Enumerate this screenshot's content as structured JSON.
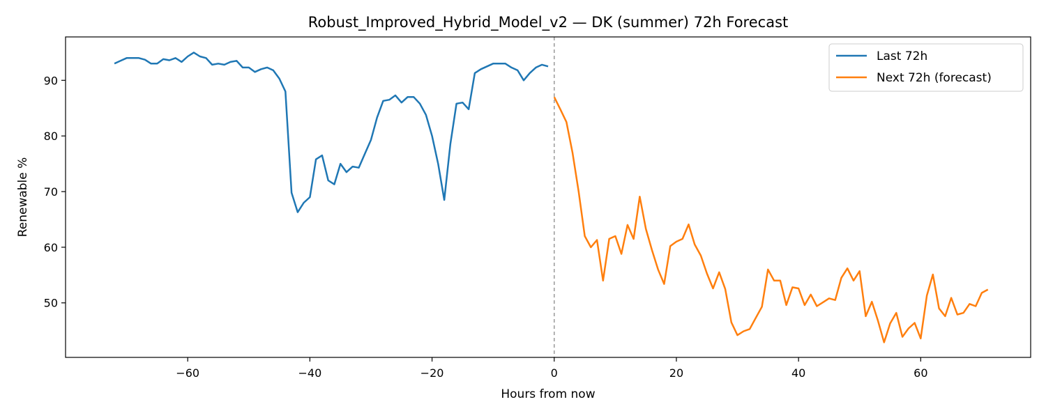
{
  "chart_data": {
    "type": "line",
    "title": "Robust_Improved_Hybrid_Model_v2 — DK (summer) 72h Forecast",
    "xlabel": "Hours from now",
    "ylabel": "Renewable %",
    "xlim": [
      -80,
      78
    ],
    "ylim": [
      40.2,
      97.8
    ],
    "x_ticks": [
      -60,
      -40,
      -20,
      0,
      20,
      40,
      60
    ],
    "x_tick_labels": [
      "−60",
      "−40",
      "−20",
      "0",
      "20",
      "40",
      "60"
    ],
    "y_ticks": [
      50,
      60,
      70,
      80,
      90
    ],
    "y_tick_labels": [
      "50",
      "60",
      "70",
      "80",
      "90"
    ],
    "grid": false,
    "legend_position": "top-right",
    "vline": {
      "x": 0,
      "style": "dashed",
      "color": "#999999"
    },
    "series": [
      {
        "name": "Last 72h",
        "color": "#1f77b4",
        "x": [
          -72,
          -71,
          -70,
          -69,
          -68,
          -67,
          -66,
          -65,
          -64,
          -63,
          -62,
          -61,
          -60,
          -59,
          -58,
          -57,
          -56,
          -55,
          -54,
          -53,
          -52,
          -51,
          -50,
          -49,
          -48,
          -47,
          -46,
          -45,
          -44,
          -43,
          -42,
          -41,
          -40,
          -39,
          -38,
          -37,
          -36,
          -35,
          -34,
          -33,
          -32,
          -31,
          -30,
          -29,
          -28,
          -27,
          -26,
          -25,
          -24,
          -23,
          -22,
          -21,
          -20,
          -19,
          -18,
          -17,
          -16,
          -15,
          -14,
          -13,
          -12,
          -11,
          -10,
          -9,
          -8,
          -7,
          -6,
          -5,
          -4,
          -3,
          -2,
          -1
        ],
        "y": [
          93.0,
          93.5,
          94.0,
          94.0,
          94.0,
          93.7,
          93.0,
          93.0,
          93.8,
          93.6,
          94.0,
          93.3,
          94.3,
          95.0,
          94.3,
          94.0,
          92.8,
          93.0,
          92.8,
          93.3,
          93.5,
          92.3,
          92.3,
          91.5,
          92.0,
          92.3,
          91.8,
          90.3,
          88.0,
          69.8,
          66.3,
          68.0,
          69.0,
          75.8,
          76.5,
          72.0,
          71.3,
          75.0,
          73.5,
          74.5,
          74.3,
          76.8,
          79.3,
          83.3,
          86.3,
          86.5,
          87.3,
          86.0,
          87.0,
          87.0,
          85.8,
          83.8,
          80.0,
          75.0,
          68.5,
          78.5,
          85.8,
          86.0,
          84.8,
          91.3,
          92.0,
          92.5,
          93.0,
          93.0,
          93.0,
          92.3,
          91.8,
          90.0,
          91.3,
          92.3,
          92.8,
          92.5
        ]
      },
      {
        "name": "Next 72h (forecast)",
        "color": "#ff7f0e",
        "x": [
          0,
          1,
          2,
          3,
          4,
          5,
          6,
          7,
          8,
          9,
          10,
          11,
          12,
          13,
          14,
          15,
          16,
          17,
          18,
          19,
          20,
          21,
          22,
          23,
          24,
          25,
          26,
          27,
          28,
          29,
          30,
          31,
          32,
          33,
          34,
          35,
          36,
          37,
          38,
          39,
          40,
          41,
          42,
          43,
          44,
          45,
          46,
          47,
          48,
          49,
          50,
          51,
          52,
          53,
          54,
          55,
          56,
          57,
          58,
          59,
          60,
          61,
          62,
          63,
          64,
          65,
          66,
          67,
          68,
          69,
          70,
          71
        ],
        "y": [
          87.0,
          84.8,
          82.5,
          77.0,
          70.0,
          62.0,
          60.0,
          61.3,
          54.0,
          61.5,
          62.0,
          58.8,
          64.0,
          61.5,
          69.1,
          63.3,
          59.5,
          56.0,
          53.4,
          60.2,
          61.0,
          61.5,
          64.1,
          60.5,
          58.5,
          55.3,
          52.6,
          55.5,
          52.5,
          46.5,
          44.2,
          44.9,
          45.3,
          47.3,
          49.3,
          56.0,
          54.0,
          54.0,
          49.6,
          52.8,
          52.6,
          49.6,
          51.5,
          49.4,
          50.1,
          50.8,
          50.5,
          54.5,
          56.2,
          54.0,
          55.7,
          47.6,
          50.2,
          46.8,
          42.9,
          46.3,
          48.2,
          43.9,
          45.4,
          46.4,
          43.6,
          51.3,
          55.1,
          49.0,
          47.6,
          50.9,
          47.9,
          48.2,
          49.8,
          49.4,
          51.8,
          52.4
        ]
      }
    ]
  }
}
